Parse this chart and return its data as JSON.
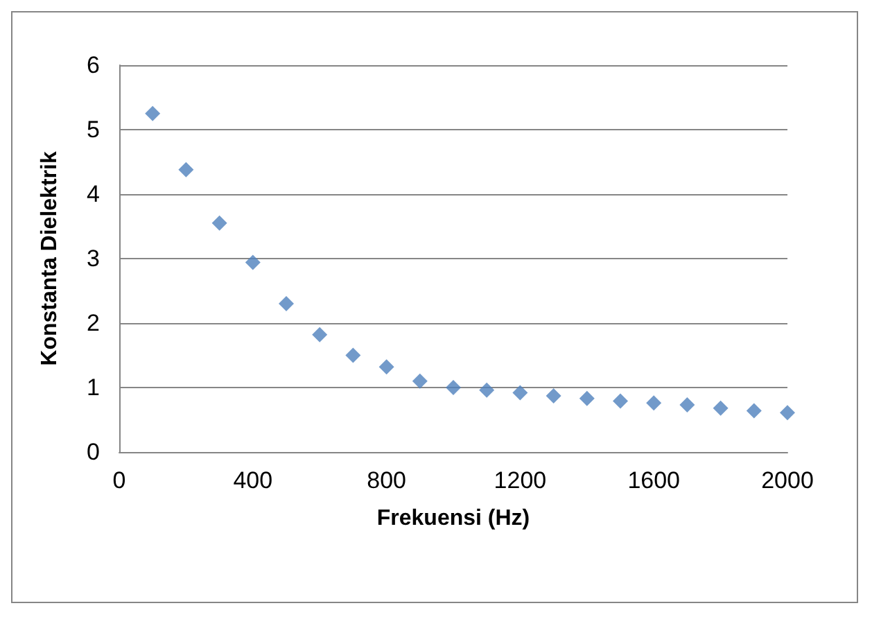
{
  "chart_data": {
    "type": "scatter",
    "xlabel": "Frekuensi (Hz)",
    "ylabel": "Konstanta Dielektrik",
    "x": [
      100,
      200,
      300,
      400,
      500,
      600,
      700,
      800,
      900,
      1000,
      1100,
      1200,
      1300,
      1400,
      1500,
      1600,
      1700,
      1800,
      1900,
      2000
    ],
    "values": [
      5.25,
      4.38,
      3.55,
      2.94,
      2.3,
      1.82,
      1.5,
      1.32,
      1.1,
      1.0,
      0.96,
      0.92,
      0.87,
      0.83,
      0.79,
      0.76,
      0.73,
      0.68,
      0.64,
      0.61
    ],
    "color": "#4f81bd",
    "marker": "diamond",
    "grid": "y",
    "xlim": [
      0,
      2000
    ],
    "xticks": [
      0,
      400,
      800,
      1200,
      1600,
      2000
    ],
    "ylim": [
      0,
      6
    ],
    "yticks": [
      0,
      1,
      2,
      3,
      4,
      5,
      6
    ]
  }
}
